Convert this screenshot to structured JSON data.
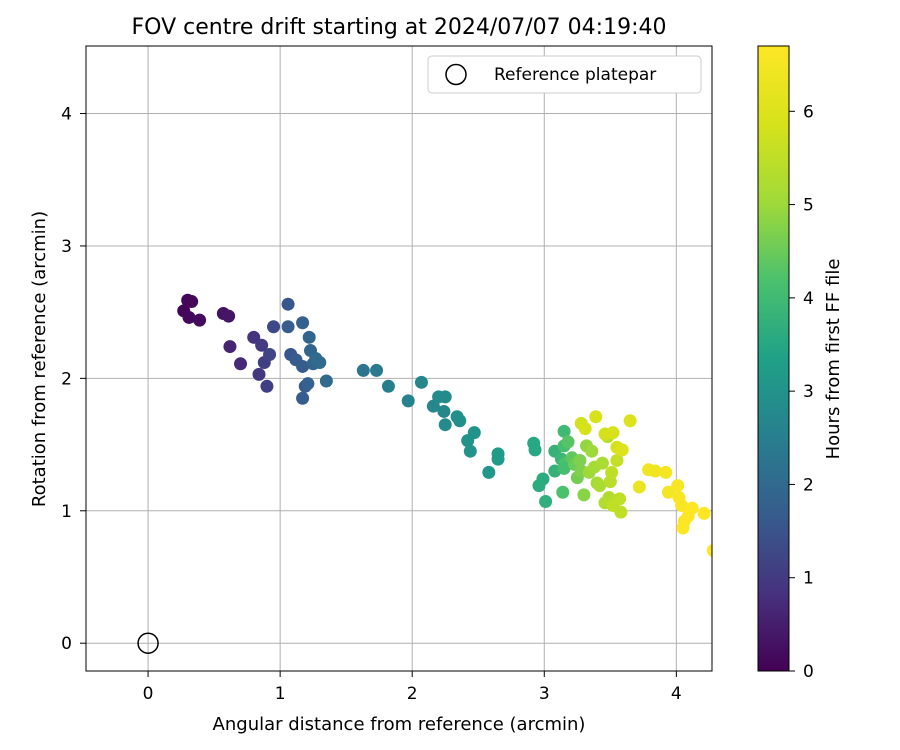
{
  "chart_data": {
    "type": "scatter",
    "title": "FOV centre drift starting at 2024/07/07 04:19:40",
    "xlabel": "Angular distance from reference (arcmin)",
    "ylabel": "Rotation from reference (arcmin)",
    "xlim": [
      -0.47,
      4.27
    ],
    "ylim": [
      -0.21,
      4.51
    ],
    "xticks": [
      "0",
      "1",
      "2",
      "3",
      "4"
    ],
    "yticks": [
      "0",
      "1",
      "2",
      "3",
      "4"
    ],
    "grid": true,
    "legend": {
      "position": "top-right",
      "entries": [
        "Reference platepar"
      ]
    },
    "reference_point": {
      "x": 0,
      "y": 0,
      "name": "Reference platepar"
    },
    "colorbar": {
      "label": "Hours from first FF file",
      "colormap": "viridis",
      "range": [
        0,
        6.7
      ],
      "ticks": [
        "0",
        "1",
        "2",
        "3",
        "4",
        "5",
        "6"
      ]
    },
    "points": [
      [
        0.27,
        2.51,
        0.05
      ],
      [
        0.3,
        2.59,
        0.08
      ],
      [
        0.33,
        2.58,
        0.1
      ],
      [
        0.31,
        2.46,
        0.12
      ],
      [
        0.39,
        2.44,
        0.15
      ],
      [
        0.57,
        2.49,
        0.3
      ],
      [
        0.61,
        2.47,
        0.35
      ],
      [
        0.62,
        2.24,
        0.6
      ],
      [
        0.7,
        2.11,
        0.7
      ],
      [
        0.8,
        2.31,
        0.9
      ],
      [
        0.86,
        2.25,
        1.0
      ],
      [
        0.84,
        2.03,
        0.95
      ],
      [
        0.88,
        2.12,
        1.1
      ],
      [
        0.9,
        1.94,
        1.1
      ],
      [
        0.92,
        2.18,
        1.2
      ],
      [
        0.95,
        2.39,
        1.3
      ],
      [
        1.06,
        2.56,
        1.6
      ],
      [
        1.06,
        2.39,
        1.7
      ],
      [
        1.08,
        2.18,
        1.6
      ],
      [
        1.12,
        2.14,
        1.7
      ],
      [
        1.17,
        2.42,
        1.8
      ],
      [
        1.17,
        2.09,
        1.7
      ],
      [
        1.19,
        1.94,
        1.7
      ],
      [
        1.21,
        1.96,
        1.8
      ],
      [
        1.17,
        1.85,
        1.7
      ],
      [
        1.22,
        2.31,
        1.9
      ],
      [
        1.23,
        2.21,
        1.9
      ],
      [
        1.25,
        2.11,
        1.9
      ],
      [
        1.27,
        2.15,
        2.0
      ],
      [
        1.3,
        2.12,
        2.0
      ],
      [
        1.35,
        1.98,
        2.0
      ],
      [
        1.63,
        2.06,
        2.3
      ],
      [
        1.73,
        2.06,
        2.4
      ],
      [
        1.82,
        1.94,
        2.5
      ],
      [
        1.97,
        1.83,
        2.6
      ],
      [
        2.07,
        1.97,
        2.7
      ],
      [
        2.16,
        1.79,
        2.7
      ],
      [
        2.2,
        1.86,
        2.8
      ],
      [
        2.25,
        1.86,
        2.8
      ],
      [
        2.24,
        1.75,
        2.7
      ],
      [
        2.25,
        1.65,
        2.8
      ],
      [
        2.34,
        1.71,
        2.9
      ],
      [
        2.36,
        1.68,
        2.9
      ],
      [
        2.42,
        1.53,
        3.0
      ],
      [
        2.44,
        1.45,
        3.0
      ],
      [
        2.47,
        1.59,
        3.0
      ],
      [
        2.58,
        1.29,
        3.1
      ],
      [
        2.65,
        1.43,
        3.2
      ],
      [
        2.65,
        1.39,
        3.2
      ],
      [
        2.92,
        1.51,
        3.5
      ],
      [
        2.93,
        1.46,
        3.5
      ],
      [
        2.96,
        1.19,
        3.6
      ],
      [
        2.99,
        1.24,
        3.6
      ],
      [
        3.01,
        1.07,
        3.7
      ],
      [
        3.08,
        1.45,
        3.8
      ],
      [
        3.08,
        1.3,
        3.8
      ],
      [
        3.13,
        1.39,
        3.9
      ],
      [
        3.15,
        1.6,
        4.0
      ],
      [
        3.15,
        1.49,
        4.1
      ],
      [
        3.16,
        1.36,
        4.2
      ],
      [
        3.15,
        1.32,
        4.1
      ],
      [
        3.14,
        1.14,
        4.2
      ],
      [
        3.18,
        1.52,
        4.3
      ],
      [
        3.21,
        1.4,
        4.4
      ],
      [
        3.23,
        1.35,
        4.5
      ],
      [
        3.25,
        1.25,
        4.6
      ],
      [
        3.27,
        1.38,
        4.7
      ],
      [
        3.28,
        1.3,
        4.7
      ],
      [
        3.3,
        1.12,
        4.8
      ],
      [
        3.32,
        1.49,
        4.9
      ],
      [
        3.34,
        1.29,
        5.0
      ],
      [
        3.36,
        1.45,
        5.0
      ],
      [
        3.38,
        1.33,
        5.1
      ],
      [
        3.4,
        1.21,
        5.1
      ],
      [
        3.42,
        1.19,
        5.2
      ],
      [
        3.44,
        1.36,
        5.2
      ],
      [
        3.46,
        1.06,
        5.3
      ],
      [
        3.48,
        1.56,
        5.4
      ],
      [
        3.49,
        1.1,
        5.3
      ],
      [
        3.5,
        1.22,
        5.4
      ],
      [
        3.51,
        1.29,
        5.5
      ],
      [
        3.52,
        1.04,
        5.5
      ],
      [
        3.55,
        1.38,
        5.6
      ],
      [
        3.57,
        1.09,
        5.5
      ],
      [
        3.58,
        0.99,
        5.5
      ],
      [
        3.28,
        1.66,
        5.8
      ],
      [
        3.31,
        1.62,
        5.9
      ],
      [
        3.39,
        1.71,
        5.9
      ],
      [
        3.46,
        1.58,
        5.8
      ],
      [
        3.52,
        1.59,
        5.9
      ],
      [
        3.55,
        1.48,
        5.9
      ],
      [
        3.59,
        1.46,
        6.0
      ],
      [
        3.65,
        1.68,
        6.0
      ],
      [
        3.72,
        1.18,
        6.3
      ],
      [
        3.79,
        1.31,
        6.4
      ],
      [
        3.84,
        1.3,
        6.4
      ],
      [
        3.92,
        1.29,
        6.5
      ],
      [
        3.94,
        1.14,
        6.5
      ],
      [
        4.01,
        1.19,
        6.6
      ],
      [
        4.02,
        1.1,
        6.6
      ],
      [
        4.04,
        1.04,
        6.6
      ],
      [
        4.06,
        0.92,
        6.6
      ],
      [
        4.05,
        0.87,
        6.7
      ],
      [
        4.09,
        0.96,
        6.7
      ],
      [
        4.12,
        1.02,
        6.7
      ],
      [
        4.21,
        0.98,
        6.7
      ],
      [
        4.28,
        0.7,
        6.7
      ]
    ]
  }
}
